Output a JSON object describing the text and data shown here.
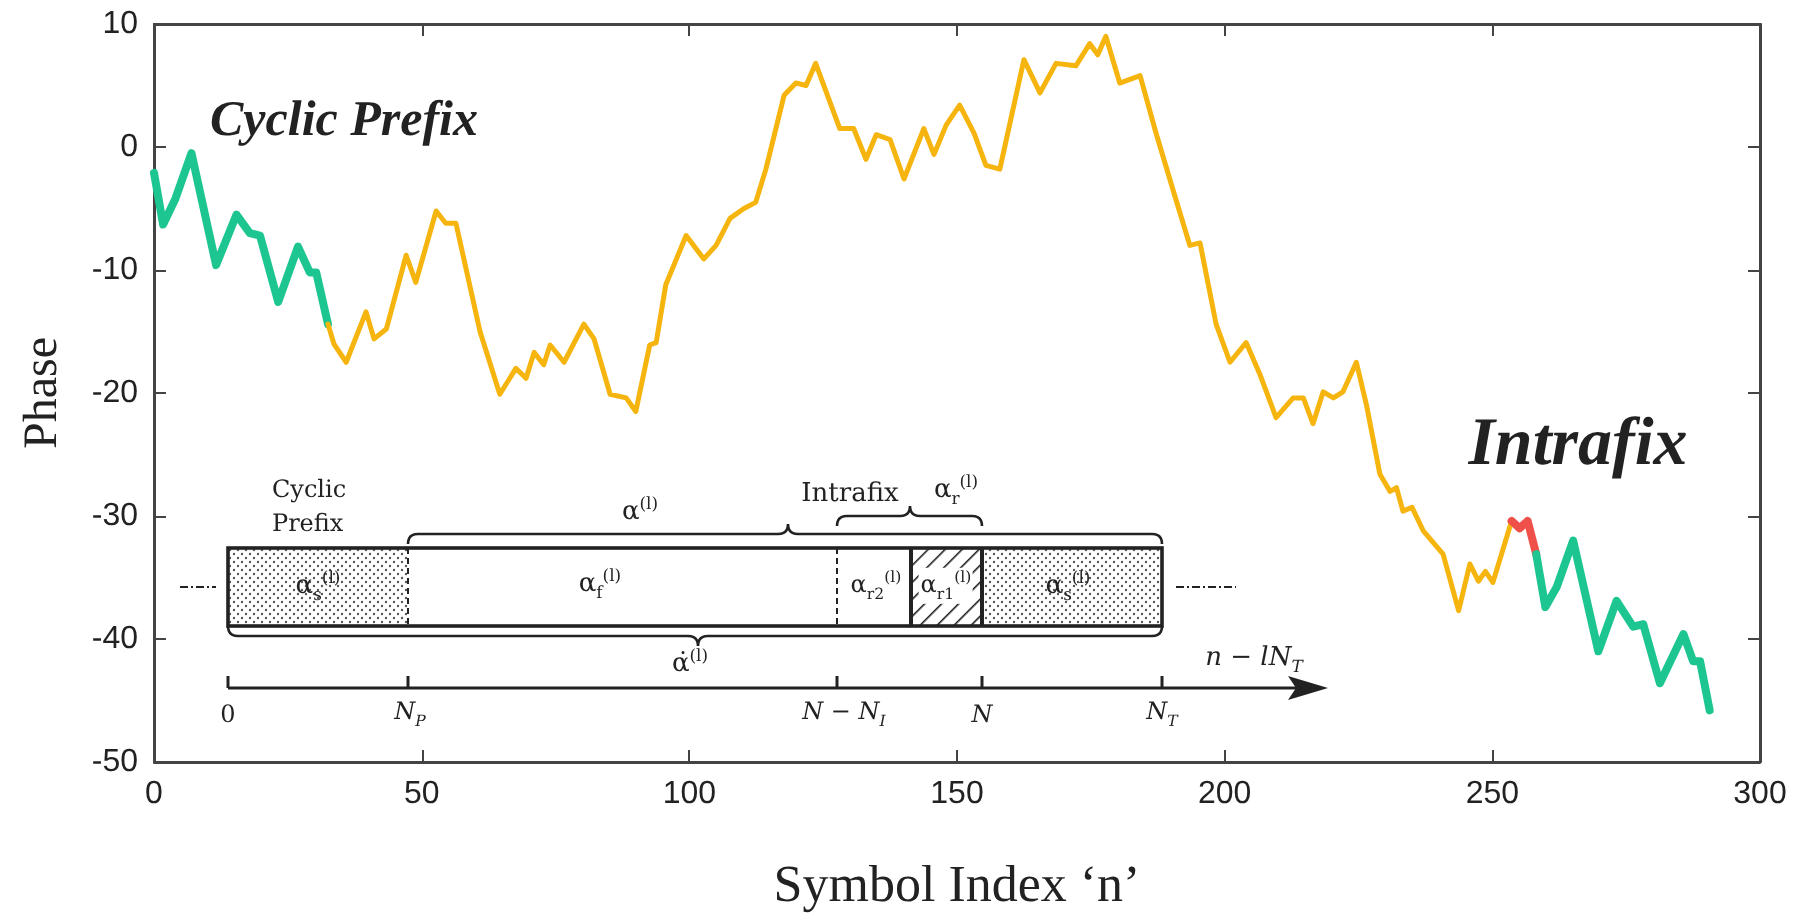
{
  "chart_data": {
    "type": "line",
    "xlabel": "Symbol Index ‘n’",
    "ylabel": "Phase",
    "xlim": [
      0,
      300
    ],
    "xticks": [
      0,
      50,
      100,
      150,
      200,
      250,
      300
    ],
    "ylim": [
      -50,
      10
    ],
    "yticks": [
      -50,
      -40,
      -30,
      -20,
      -10,
      0,
      10
    ],
    "annotations": [
      "Cyclic Prefix",
      "Intrafix",
      "Cyclic Prefix",
      "α$^{(l)}$",
      "Intrafix",
      "α$_{r}$$^{(l)}$",
      "α$_{s}$$^{(l)}$",
      "α$_{f}$$^{(l)}$",
      "α$_{r2}$$^{(l)}$",
      "α$_{r1}$$^{(l)}$",
      "α$_{s}$$^{(l)}$",
      "α̇$^{(l)}$",
      "n − lN$_{T}$",
      "0",
      "N$_{P}$",
      "N − N$_{I}$",
      "N",
      "N$_{T}$"
    ],
    "series": [
      {
        "color": "#1dc690",
        "x": [
          0,
          1.7,
          4,
          7,
          11.6,
          15.4,
          17.9,
          19.8,
          23.2,
          26.9,
          29.1,
          30.3,
          32.5
        ],
        "values": [
          -2.1,
          -6.3,
          -4.2,
          -0.5,
          -9.6,
          -5.5,
          -7,
          -7.2,
          -12.6,
          -8.1,
          -10.2,
          -10.2,
          -14.4
        ]
      },
      {
        "color": "#f6b50e",
        "x": [
          32.5,
          33.6,
          35.9,
          39.6,
          41.1,
          43.4,
          47.1,
          48.9,
          52.7,
          54.5,
          56.4,
          60.9,
          64.6,
          67.6,
          69.5,
          71,
          72.8,
          74,
          76.6,
          80.3,
          82.2,
          85.2,
          88.2,
          90,
          92.6,
          93.8,
          95.6,
          99.4,
          102.7,
          105,
          107.6,
          110.2,
          112.4,
          114.3,
          117.7,
          119.9,
          121.8,
          123.6,
          126.3,
          128.1,
          130.7,
          133,
          134.9,
          137.5,
          140.1,
          143.8,
          145.7,
          148,
          150.5,
          153.2,
          155.4,
          158,
          162.5,
          165.5,
          168.5,
          172.2,
          174.8,
          176.3,
          177.8,
          180.4,
          184.2,
          187.2,
          190.5,
          193.5,
          195.4,
          198.4,
          201,
          204,
          206.6,
          209.6,
          212.8,
          214.7,
          216.5,
          218.4,
          220.3,
          222.1,
          224.6,
          226.5,
          229,
          230.9,
          232.1,
          233.3,
          235,
          237.1,
          240.8,
          243.7,
          245.8,
          247.4,
          248.7,
          250.1,
          253.6
        ],
        "values": [
          -14.4,
          -16,
          -17.5,
          -13.4,
          -15.6,
          -14.8,
          -8.8,
          -11,
          -5.2,
          -6.2,
          -6.2,
          -15,
          -20.1,
          -18,
          -18.8,
          -16.7,
          -17.7,
          -16.1,
          -17.5,
          -14.4,
          -15.6,
          -20.1,
          -20.4,
          -21.5,
          -16.1,
          -15.9,
          -11.2,
          -7.2,
          -9.1,
          -8,
          -5.8,
          -5,
          -4.5,
          -1.8,
          4.2,
          5.2,
          5,
          6.8,
          3.6,
          1.5,
          1.5,
          -1,
          1,
          0.6,
          -2.6,
          1.5,
          -0.6,
          1.8,
          3.4,
          1.1,
          -1.5,
          -1.8,
          7.1,
          4.4,
          6.8,
          6.6,
          8.4,
          7.5,
          9,
          5.2,
          5.8,
          1.1,
          -3.7,
          -8,
          -7.8,
          -14.4,
          -17.5,
          -15.9,
          -18.5,
          -22,
          -20.4,
          -20.4,
          -22.5,
          -19.9,
          -20.4,
          -19.9,
          -17.5,
          -21,
          -26.6,
          -28,
          -27.7,
          -29.6,
          -29.3,
          -31.2,
          -33.1,
          -37.7,
          -33.9,
          -35.3,
          -34.5,
          -35.4,
          -30.4
        ]
      },
      {
        "color": "#f0504a",
        "x": [
          253.6,
          255.1,
          256.6,
          258.2
        ],
        "values": [
          -30.4,
          -31,
          -30.4,
          -33.1
        ]
      },
      {
        "color": "#1dc690",
        "x": [
          258.2,
          259.9,
          262,
          265.1,
          269.8,
          273.2,
          276.3,
          278.2,
          281.3,
          285.7,
          287.5,
          288.8,
          290.6
        ],
        "values": [
          -33.1,
          -37.4,
          -35.8,
          -32,
          -41,
          -36.9,
          -39,
          -38.8,
          -43.6,
          -39.6,
          -41.8,
          -41.8,
          -45.8
        ]
      }
    ]
  }
}
